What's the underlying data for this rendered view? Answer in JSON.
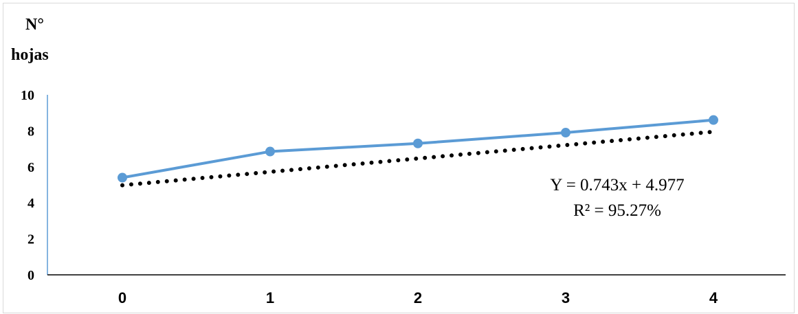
{
  "chart_data": {
    "type": "line",
    "ylabel": [
      "N°",
      "hojas"
    ],
    "xlabel": "",
    "x": [
      0,
      1,
      2,
      3,
      4
    ],
    "ylim": [
      0,
      10
    ],
    "yticks": [
      "0",
      "2",
      "4",
      "6",
      "8",
      "10"
    ],
    "xticks": [
      "0",
      "1",
      "2",
      "3",
      "4"
    ],
    "series": [
      {
        "values": [
          5.4,
          6.85,
          7.3,
          7.9,
          8.6
        ],
        "color": "#5b9bd5",
        "style": "solid-with-markers"
      }
    ],
    "trendline": {
      "type": "linear",
      "slope": 0.743,
      "intercept": 4.977,
      "color": "#000000",
      "style": "dotted"
    },
    "annotations": [
      "Y = 0.743x + 4.977",
      "R² = 95.27%"
    ],
    "grid": false,
    "legend": "none"
  }
}
